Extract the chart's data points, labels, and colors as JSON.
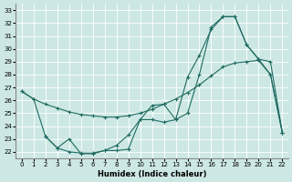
{
  "xlabel": "Humidex (Indice chaleur)",
  "xlim": [
    -0.5,
    22.5
  ],
  "ylim": [
    21.5,
    33.5
  ],
  "yticks": [
    22,
    23,
    24,
    25,
    26,
    27,
    28,
    29,
    30,
    31,
    32,
    33
  ],
  "xticks": [
    0,
    1,
    2,
    3,
    4,
    5,
    6,
    7,
    8,
    9,
    10,
    11,
    12,
    13,
    14,
    15,
    16,
    17,
    18,
    19,
    20,
    21,
    22
  ],
  "bg_color": "#cde8e4",
  "line_color": "#1f6b62",
  "curve1_x": [
    0,
    1,
    2,
    3,
    4,
    5,
    6,
    7,
    8,
    9,
    10,
    11,
    12,
    13,
    14,
    15,
    16,
    17,
    18,
    19,
    20,
    21,
    22
  ],
  "curve1_y": [
    26.7,
    26.1,
    25.7,
    25.4,
    25.1,
    24.9,
    24.8,
    24.7,
    24.7,
    24.8,
    25.0,
    25.3,
    25.7,
    26.1,
    26.6,
    27.2,
    27.9,
    28.6,
    28.9,
    29.0,
    29.1,
    28.0,
    23.5
  ],
  "curve2_x": [
    0,
    1,
    2,
    3,
    4,
    5,
    6,
    7,
    8,
    9,
    10,
    11,
    12,
    13,
    14,
    15,
    16,
    17,
    18,
    19,
    20,
    21,
    22
  ],
  "curve2_y": [
    26.7,
    26.1,
    23.2,
    22.3,
    22.0,
    21.9,
    21.9,
    22.1,
    22.5,
    23.3,
    24.5,
    25.6,
    25.7,
    24.5,
    27.8,
    29.5,
    31.5,
    32.5,
    32.5,
    30.3,
    29.2,
    28.0,
    23.5
  ],
  "curve3_x": [
    2,
    3,
    4,
    5,
    6,
    7,
    8,
    9,
    10,
    11,
    12,
    13,
    14,
    15,
    16,
    17,
    18,
    19,
    20,
    21,
    22
  ],
  "curve3_y": [
    23.2,
    22.3,
    23.0,
    21.85,
    21.85,
    22.1,
    22.1,
    22.2,
    24.5,
    24.5,
    24.3,
    24.5,
    25.0,
    28.0,
    31.7,
    32.5,
    32.5,
    30.3,
    29.2,
    29.0,
    23.5
  ]
}
